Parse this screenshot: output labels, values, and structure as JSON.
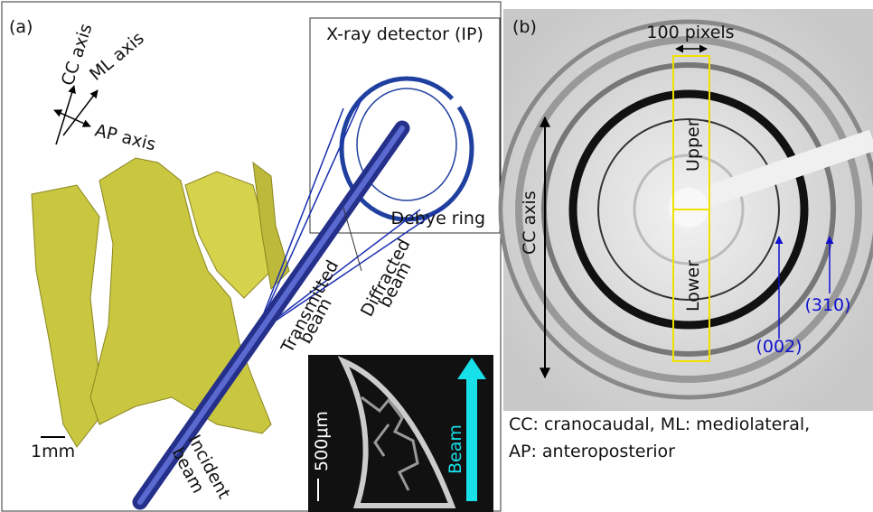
{
  "panel_a": {
    "label": "(a)",
    "axes": {
      "cc": "CC axis",
      "ml": "ML axis",
      "ap": "AP axis"
    },
    "detector": "X-ray detector (IP)",
    "debye_ring": "Debye ring",
    "transmitted_beam": [
      "Transmitted",
      "beam"
    ],
    "diffracted_beam": [
      "Diffracted",
      "beam"
    ],
    "incident_beam": [
      "Incident",
      "beam"
    ],
    "scale_bar": "1mm",
    "inset": {
      "scale_bar": "500μm",
      "beam": "Beam"
    }
  },
  "panel_b": {
    "label": "(b)",
    "width_label": "100 pixels",
    "axis": "CC axis",
    "upper": "Upper",
    "lower": "Lower",
    "peaks": [
      "(002)",
      "(310)"
    ]
  },
  "caption": [
    "CC: cranocaudal, ML: mediolateral,",
    "AP: anteroposterior"
  ]
}
